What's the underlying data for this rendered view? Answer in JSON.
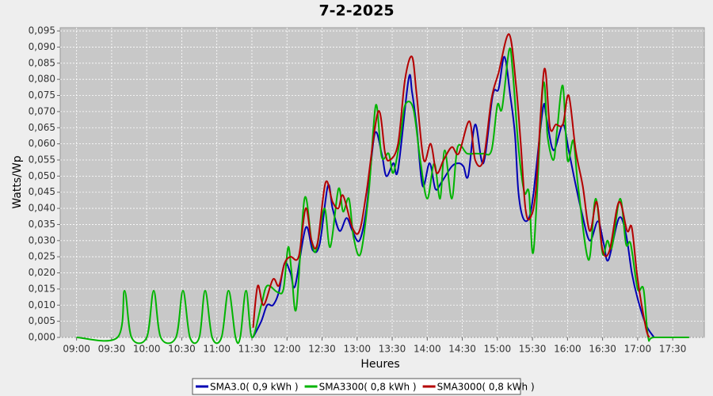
{
  "chart_data": {
    "type": "line",
    "title": "7-2-2025",
    "x_label": "Heures",
    "y_label": "Watts/Wp",
    "xlim": [
      526,
      1077
    ],
    "ylim": [
      0,
      0.096
    ],
    "grid": true,
    "legend": "bottom",
    "xticks": [
      {
        "value": 540,
        "label": "09:00"
      },
      {
        "value": 570,
        "label": "09:30"
      },
      {
        "value": 600,
        "label": "10:00"
      },
      {
        "value": 630,
        "label": "10:30"
      },
      {
        "value": 660,
        "label": "11:00"
      },
      {
        "value": 690,
        "label": "11:30"
      },
      {
        "value": 720,
        "label": "12:00"
      },
      {
        "value": 750,
        "label": "12:30"
      },
      {
        "value": 780,
        "label": "13:00"
      },
      {
        "value": 810,
        "label": "13:30"
      },
      {
        "value": 840,
        "label": "14:00"
      },
      {
        "value": 870,
        "label": "14:30"
      },
      {
        "value": 900,
        "label": "15:00"
      },
      {
        "value": 930,
        "label": "15:30"
      },
      {
        "value": 960,
        "label": "16:00"
      },
      {
        "value": 990,
        "label": "16:30"
      },
      {
        "value": 1020,
        "label": "17:00"
      },
      {
        "value": 1050,
        "label": "17:30"
      }
    ],
    "yticks": [
      {
        "value": 0,
        "label": "0,000"
      },
      {
        "value": 0.005,
        "label": "0,005"
      },
      {
        "value": 0.01,
        "label": "0,010"
      },
      {
        "value": 0.015,
        "label": "0,015"
      },
      {
        "value": 0.02,
        "label": "0,020"
      },
      {
        "value": 0.025,
        "label": "0,025"
      },
      {
        "value": 0.03,
        "label": "0,030"
      },
      {
        "value": 0.035,
        "label": "0,035"
      },
      {
        "value": 0.04,
        "label": "0,040"
      },
      {
        "value": 0.045,
        "label": "0,045"
      },
      {
        "value": 0.05,
        "label": "0,050"
      },
      {
        "value": 0.055,
        "label": "0,055"
      },
      {
        "value": 0.06,
        "label": "0,060"
      },
      {
        "value": 0.065,
        "label": "0,065"
      },
      {
        "value": 0.07,
        "label": "0,070"
      },
      {
        "value": 0.075,
        "label": "0,075"
      },
      {
        "value": 0.08,
        "label": "0,080"
      },
      {
        "value": 0.085,
        "label": "0,085"
      },
      {
        "value": 0.09,
        "label": "0,090"
      },
      {
        "value": 0.095,
        "label": "0,095"
      }
    ],
    "series": [
      {
        "name": "SMA3.0( 0,9 kWh )",
        "color": "#0000b4",
        "x": [
          691,
          698,
          703,
          708,
          713,
          718,
          723,
          727,
          736,
          742,
          748,
          755,
          759,
          765,
          771,
          776,
          782,
          788,
          795,
          801,
          805,
          811,
          815,
          824,
          827,
          831,
          836,
          842,
          847,
          852,
          861,
          867,
          871,
          875,
          881,
          888,
          896,
          901,
          906,
          911,
          915,
          918,
          922,
          927,
          931,
          939,
          942,
          948,
          956,
          961,
          966,
          972,
          979,
          986,
          991,
          995,
          1004,
          1010,
          1015,
          1020,
          1027,
          1034
        ],
        "values": [
          0,
          0.005,
          0.01,
          0.01,
          0.014,
          0.023,
          0.02,
          0.016,
          0.034,
          0.027,
          0.029,
          0.047,
          0.04,
          0.033,
          0.037,
          0.033,
          0.03,
          0.04,
          0.063,
          0.057,
          0.05,
          0.054,
          0.052,
          0.08,
          0.076,
          0.065,
          0.047,
          0.054,
          0.046,
          0.048,
          0.053,
          0.054,
          0.053,
          0.05,
          0.066,
          0.054,
          0.075,
          0.077,
          0.087,
          0.075,
          0.063,
          0.045,
          0.037,
          0.037,
          0.045,
          0.071,
          0.068,
          0.058,
          0.066,
          0.058,
          0.049,
          0.039,
          0.03,
          0.036,
          0.029,
          0.024,
          0.037,
          0.032,
          0.02,
          0.012,
          0.004,
          0
        ]
      },
      {
        "name": "SMA3300( 0,8 kWh )",
        "color": "#00b400",
        "x": [
          540,
          575,
          581,
          587,
          600,
          606,
          612,
          625,
          631,
          637,
          645,
          650,
          656,
          664,
          670,
          676,
          680,
          685,
          690,
          698,
          703,
          712,
          717,
          721,
          724,
          728,
          735,
          741,
          745,
          752,
          757,
          764,
          768,
          773,
          777,
          783,
          790,
          796,
          801,
          807,
          811,
          817,
          821,
          828,
          834,
          840,
          846,
          851,
          855,
          861,
          866,
          874,
          881,
          888,
          895,
          900,
          904,
          910,
          913,
          918,
          923,
          927,
          931,
          939,
          943,
          948,
          951,
          956,
          960,
          965,
          969,
          978,
          984,
          990,
          994,
          998,
          1005,
          1010,
          1014,
          1020,
          1025,
          1029,
          1034,
          1064
        ],
        "values": [
          0,
          0,
          0.0145,
          0,
          0,
          0.0145,
          0,
          0,
          0.0145,
          0,
          0,
          0.0145,
          0,
          0,
          0.0145,
          0,
          0,
          0.0145,
          0,
          0.01,
          0.016,
          0.014,
          0.015,
          0.028,
          0.02,
          0.009,
          0.043,
          0.03,
          0.027,
          0.04,
          0.028,
          0.046,
          0.039,
          0.043,
          0.031,
          0.026,
          0.045,
          0.072,
          0.056,
          0.057,
          0.051,
          0.062,
          0.072,
          0.071,
          0.055,
          0.043,
          0.054,
          0.043,
          0.058,
          0.043,
          0.059,
          0.057,
          0.057,
          0.057,
          0.058,
          0.072,
          0.071,
          0.089,
          0.083,
          0.059,
          0.045,
          0.045,
          0.027,
          0.078,
          0.062,
          0.055,
          0.064,
          0.078,
          0.055,
          0.061,
          0.047,
          0.024,
          0.043,
          0.026,
          0.03,
          0.028,
          0.043,
          0.029,
          0.029,
          0.015,
          0.015,
          0,
          0,
          0
        ]
      },
      {
        "name": "SMA3000( 0,8 kWh )",
        "color": "#b40000",
        "x": [
          691,
          695,
          700,
          708,
          713,
          718,
          723,
          730,
          736,
          741,
          746,
          753,
          759,
          764,
          768,
          776,
          782,
          788,
          798,
          804,
          808,
          815,
          821,
          827,
          831,
          837,
          843,
          848,
          854,
          861,
          867,
          876,
          881,
          888,
          895,
          901,
          910,
          916,
          920,
          924,
          928,
          933,
          940,
          945,
          950,
          956,
          961,
          967,
          973,
          979,
          985,
          990,
          996,
          1004,
          1011,
          1015,
          1020,
          1027,
          1030
        ],
        "values": [
          0.003,
          0.016,
          0.01,
          0.018,
          0.016,
          0.023,
          0.025,
          0.025,
          0.04,
          0.03,
          0.029,
          0.048,
          0.042,
          0.04,
          0.044,
          0.034,
          0.033,
          0.045,
          0.07,
          0.057,
          0.055,
          0.06,
          0.08,
          0.087,
          0.075,
          0.055,
          0.06,
          0.051,
          0.055,
          0.059,
          0.057,
          0.067,
          0.055,
          0.055,
          0.074,
          0.082,
          0.094,
          0.078,
          0.06,
          0.04,
          0.037,
          0.046,
          0.083,
          0.065,
          0.066,
          0.066,
          0.075,
          0.058,
          0.047,
          0.033,
          0.042,
          0.027,
          0.027,
          0.042,
          0.033,
          0.034,
          0.018,
          0.003,
          0
        ]
      }
    ]
  }
}
